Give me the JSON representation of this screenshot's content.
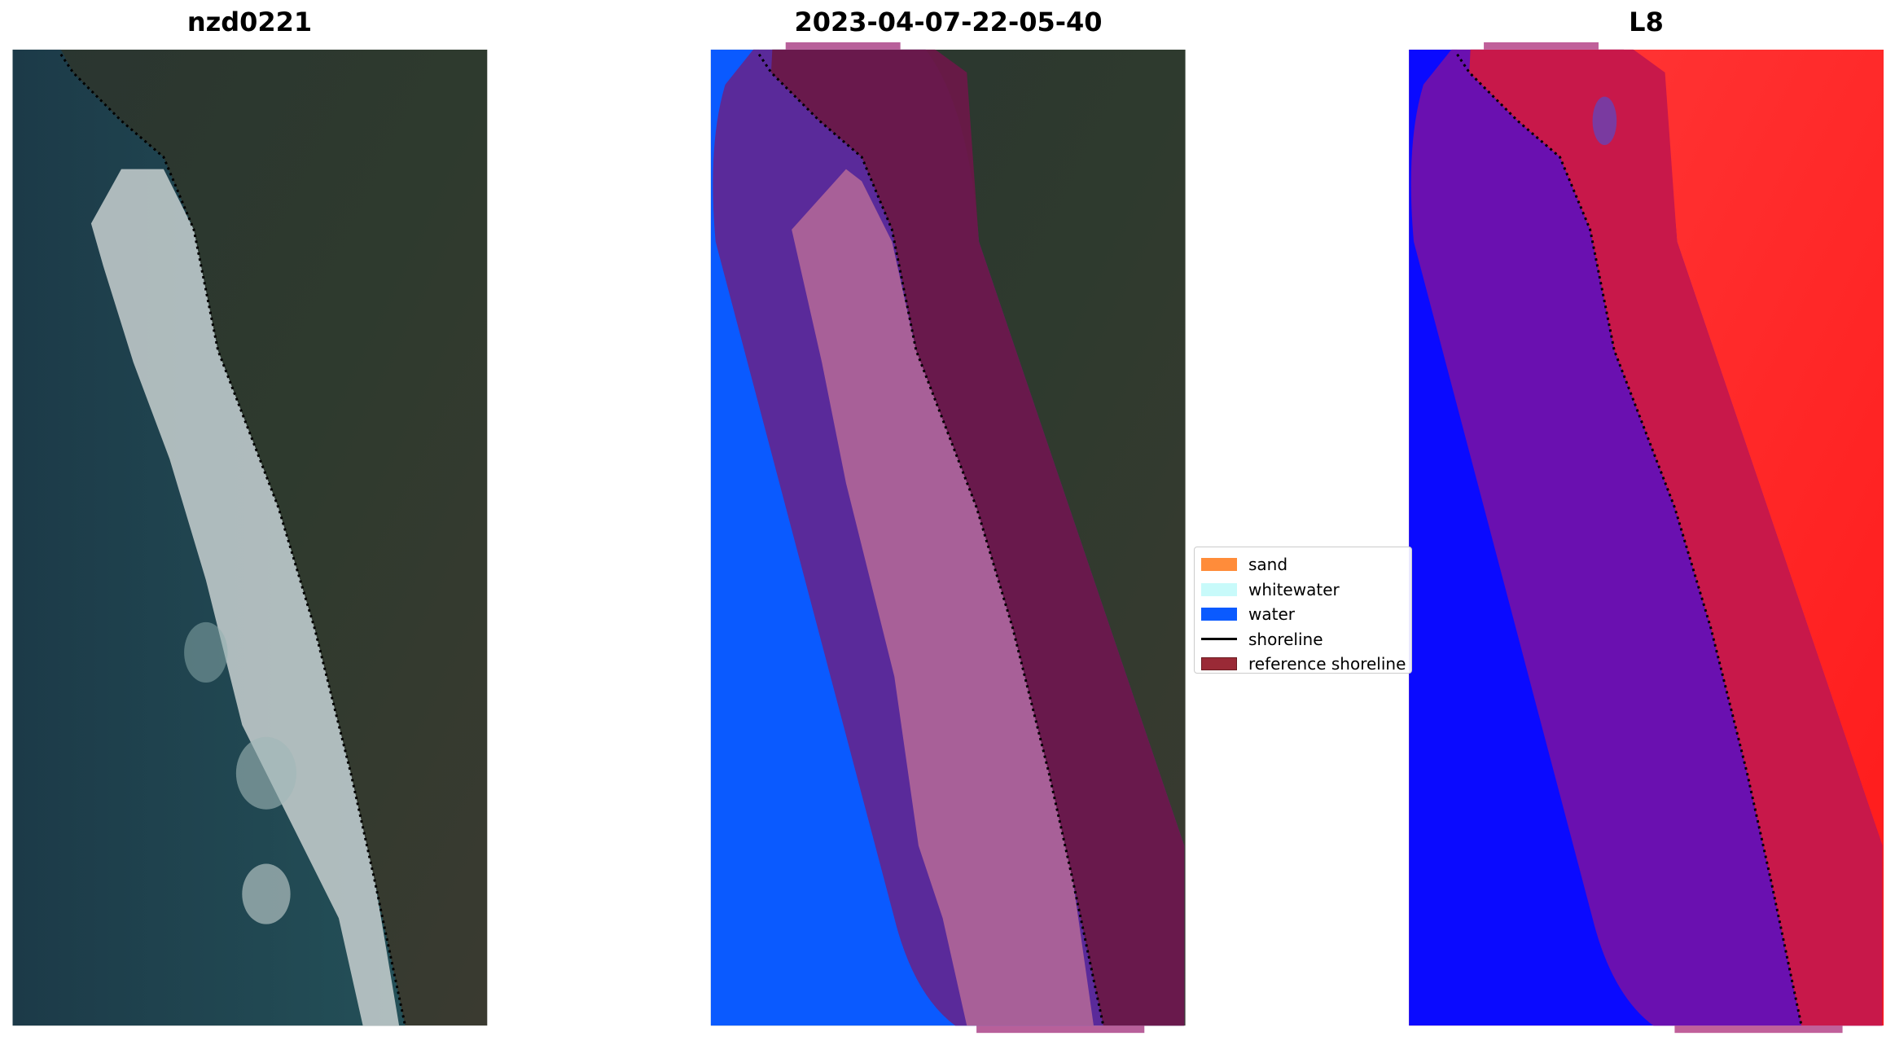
{
  "panels": [
    {
      "title": "nzd0221"
    },
    {
      "title": "2023-04-07-22-05-40"
    },
    {
      "title": "L8"
    }
  ],
  "legend": {
    "items": [
      {
        "label": "sand",
        "type": "patch",
        "color": "#ff8c3a"
      },
      {
        "label": "whitewater",
        "type": "patch",
        "color": "#c8fafa"
      },
      {
        "label": "water",
        "type": "patch",
        "color": "#0a5aff"
      },
      {
        "label": "shoreline",
        "type": "line",
        "color": "#000000"
      },
      {
        "label": "reference shoreline",
        "type": "patch",
        "color": "#9a2a36"
      }
    ]
  }
}
